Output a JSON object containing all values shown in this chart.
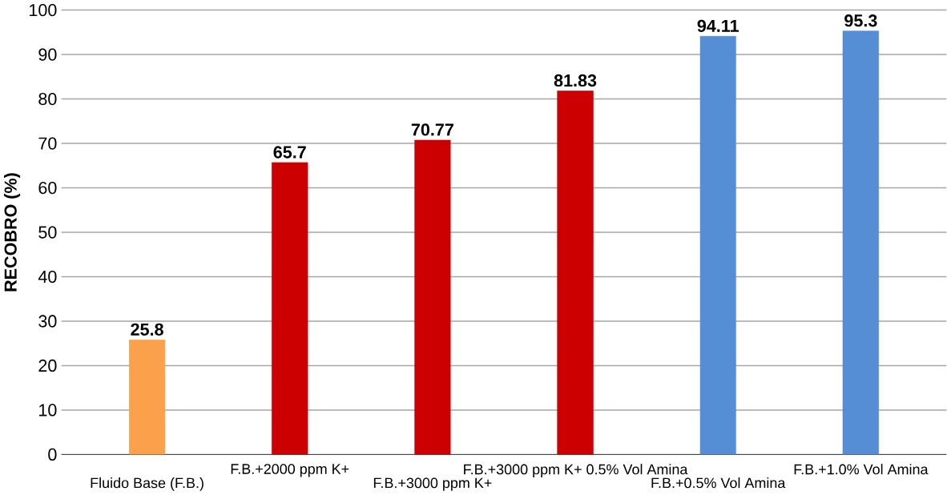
{
  "chart_data": {
    "type": "bar",
    "ylabel": "RECOBRO (%)",
    "categories": [
      "Fluido Base (F.B.)",
      "F.B.+2000 ppm K+",
      "F.B.+3000 ppm K+",
      "F.B.+3000 ppm K+ 0.5% Vol Amina",
      "F.B.+0.5% Vol Amina",
      "F.B.+1.0% Vol Amina"
    ],
    "values": [
      25.8,
      65.7,
      70.77,
      81.83,
      94.11,
      95.3
    ],
    "colors": [
      "#fba04b",
      "#cc0000",
      "#cc0000",
      "#cc0000",
      "#558ed5",
      "#558ed5"
    ],
    "ylim": [
      0,
      100
    ],
    "yticks": [
      0,
      10,
      20,
      30,
      40,
      50,
      60,
      70,
      80,
      90,
      100
    ],
    "grid": "y",
    "data_labels": true
  }
}
